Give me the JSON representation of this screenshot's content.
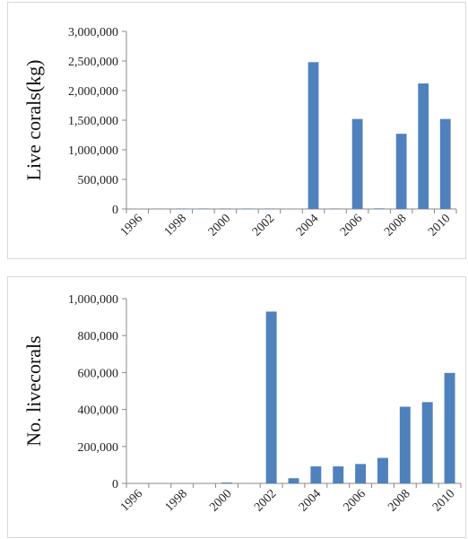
{
  "chart_data": [
    {
      "type": "bar",
      "ylabel": "Live corals(kg)",
      "xlabel": "",
      "ylim": [
        0,
        3000000
      ],
      "y_ticks": [
        "0",
        "500,000",
        "1,000,000",
        "1,500,000",
        "2,000,000",
        "2,500,000",
        "3,000,000"
      ],
      "categories": [
        "1996",
        "1997",
        "1998",
        "1999",
        "2000",
        "2001",
        "2002",
        "2003",
        "2004",
        "2005",
        "2006",
        "2007",
        "2008",
        "2009",
        "2010"
      ],
      "x_tick_labels": [
        "1996",
        "1998",
        "2000",
        "2002",
        "2004",
        "2006",
        "2008",
        "2010"
      ],
      "values": [
        0,
        5000,
        8000,
        8000,
        8000,
        8000,
        8000,
        0,
        2480000,
        8000,
        1520000,
        10000,
        1270000,
        2120000,
        1520000
      ],
      "bar_color": "#4f81bd",
      "grid": false
    },
    {
      "type": "bar",
      "ylabel": "No. livecorals",
      "xlabel": "",
      "ylim": [
        0,
        1000000
      ],
      "y_ticks": [
        "0",
        "200,000",
        "400,000",
        "600,000",
        "800,000",
        "1,000,000"
      ],
      "categories": [
        "1996",
        "1997",
        "1998",
        "1999",
        "2000",
        "2001",
        "2002",
        "2003",
        "2004",
        "2005",
        "2006",
        "2007",
        "2008",
        "2009",
        "2010"
      ],
      "x_tick_labels": [
        "1996",
        "1998",
        "2000",
        "2002",
        "2004",
        "2006",
        "2008",
        "2010"
      ],
      "values": [
        0,
        0,
        0,
        0,
        5000,
        0,
        930000,
        28000,
        92000,
        92000,
        105000,
        138000,
        415000,
        440000,
        598000
      ],
      "bar_color": "#4f81bd",
      "grid": false
    }
  ]
}
